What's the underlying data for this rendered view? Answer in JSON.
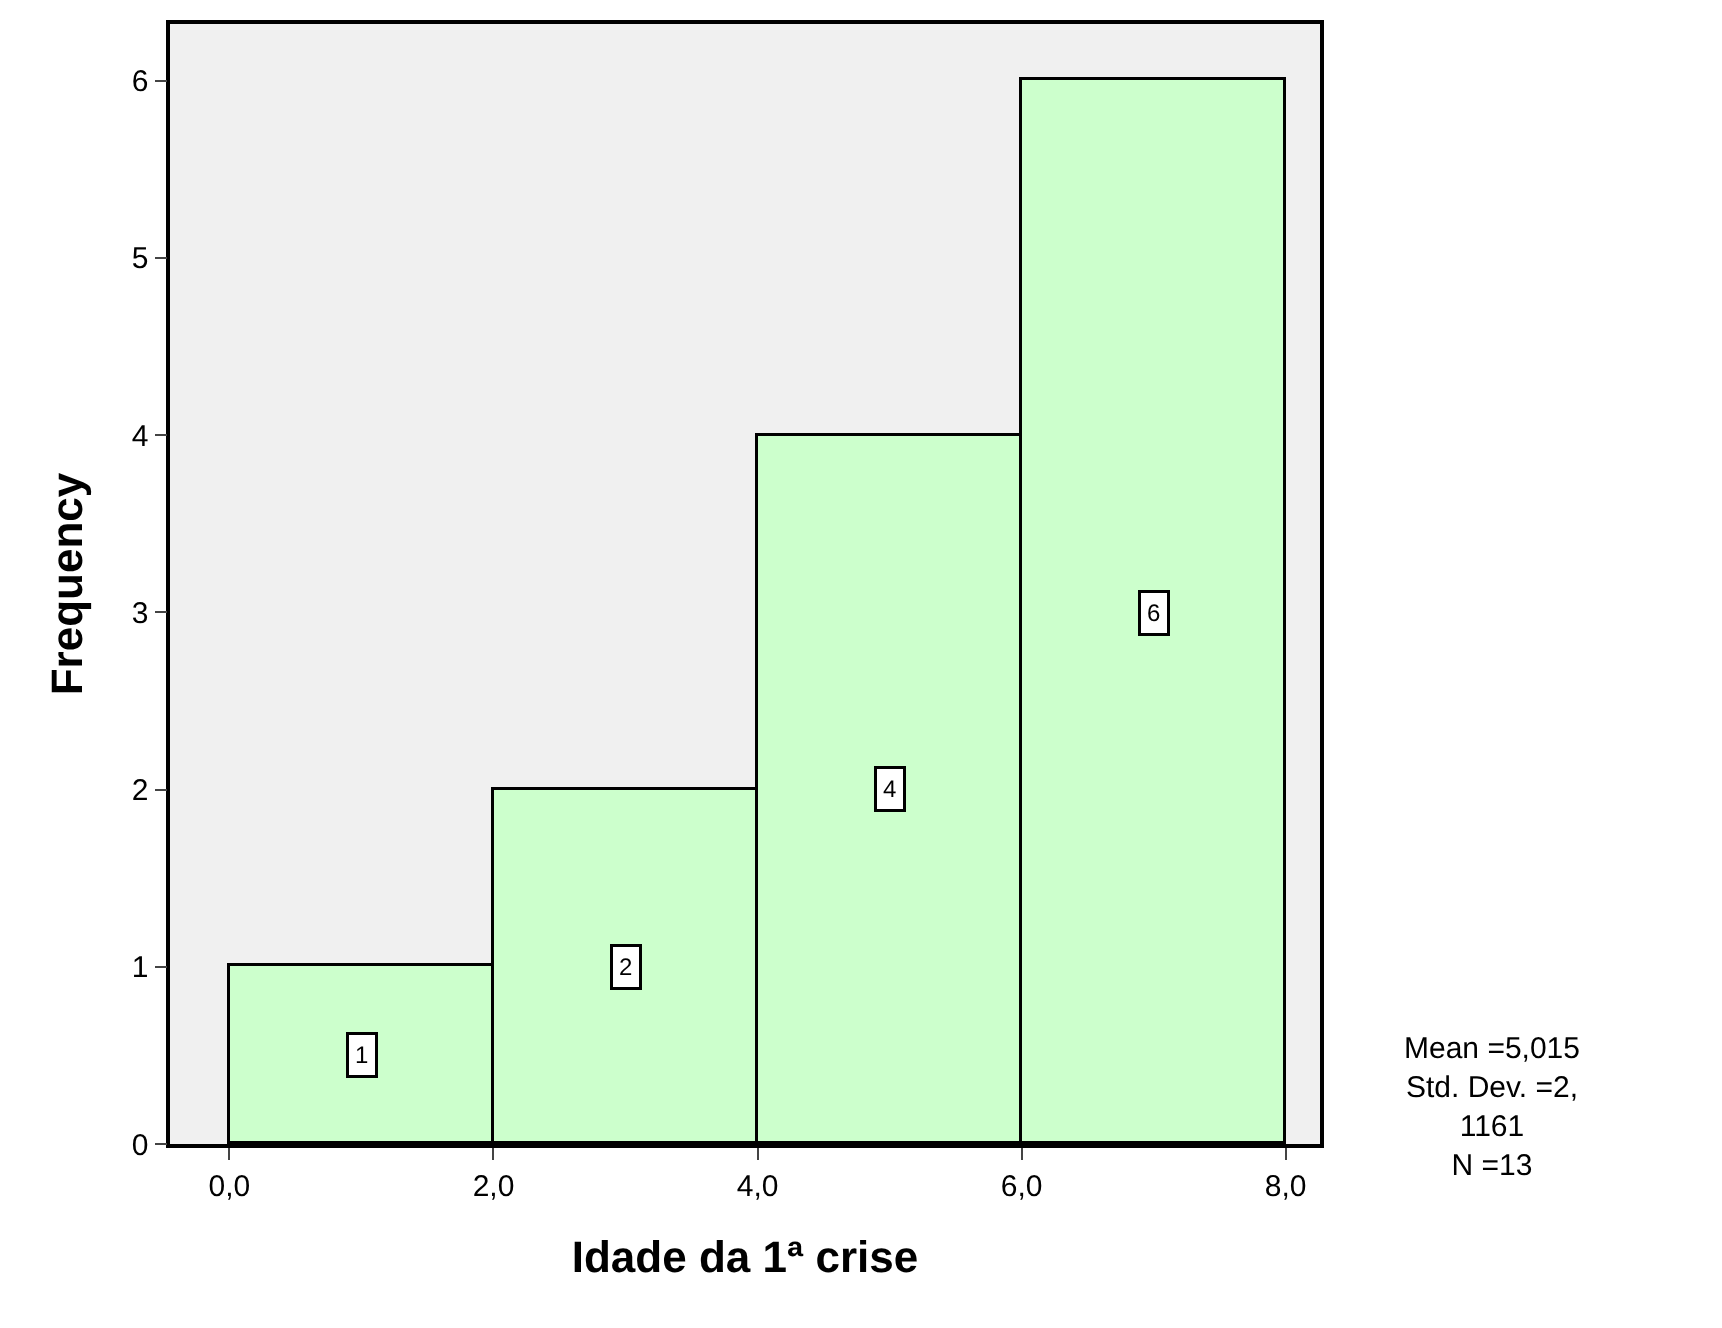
{
  "chart_data": {
    "type": "histogram",
    "xlabel": "Idade da 1ª crise",
    "ylabel": "Frequency",
    "bins": [
      0,
      2,
      4,
      6,
      8
    ],
    "values": [
      1,
      2,
      4,
      6
    ],
    "color": "#ccffcc",
    "xlim": [
      -0.45,
      8.26
    ],
    "xticks": [
      {
        "value": 0,
        "label": "0,0"
      },
      {
        "value": 2,
        "label": "2,0"
      },
      {
        "value": 4,
        "label": "4,0"
      },
      {
        "value": 6,
        "label": "6,0"
      },
      {
        "value": 8,
        "label": "8,0"
      }
    ],
    "ylim": [
      0,
      6.32
    ],
    "yticks": [
      0,
      1,
      2,
      3,
      4,
      5,
      6
    ],
    "data_labels": true,
    "annotations": [
      "Mean =5,015\nStd. Dev. =2,\n1161\nN =13"
    ]
  }
}
